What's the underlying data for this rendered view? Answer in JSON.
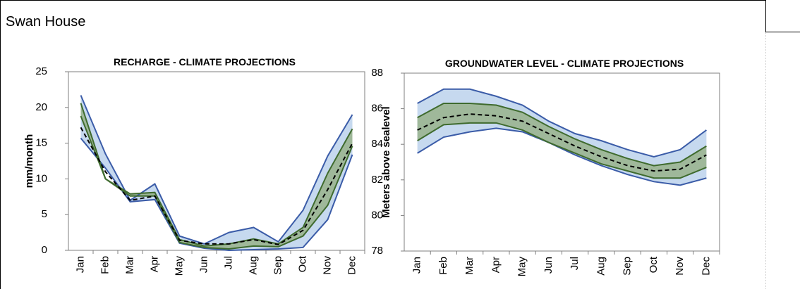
{
  "header": {
    "title": "Swan House"
  },
  "chart_data": [
    {
      "type": "line",
      "title": "RECHARGE - CLIMATE PROJECTIONS",
      "y_label": "mm/month",
      "categories": [
        "Jan",
        "Feb",
        "Mar",
        "Apr",
        "May",
        "Jun",
        "Jul",
        "Aug",
        "Sep",
        "Oct",
        "Nov",
        "Dec"
      ],
      "ylim": [
        0,
        25
      ],
      "yticks": [
        0,
        5,
        10,
        15,
        20,
        25
      ],
      "band_colors": [
        "#c6d9ef",
        "#9fb89a"
      ],
      "series": [
        {
          "color": "#3b5ca8",
          "values": [
            21.7,
            13.5,
            7.0,
            9.3,
            2.0,
            0.9,
            2.5,
            3.2,
            1.2,
            5.6,
            13.2,
            19.0
          ]
        },
        {
          "color": "#3b5ca8",
          "values": [
            15.7,
            11.5,
            6.8,
            7.1,
            1.0,
            0.3,
            0.0,
            0.1,
            0.2,
            0.4,
            4.3,
            13.4
          ]
        },
        {
          "color": "#3f6b2e",
          "values": [
            20.6,
            10.0,
            7.9,
            8.1,
            1.5,
            0.6,
            0.9,
            1.6,
            0.9,
            3.2,
            10.8,
            17.0
          ]
        },
        {
          "color": "#3f6b2e",
          "values": [
            18.8,
            10.0,
            7.6,
            7.6,
            1.1,
            0.4,
            0.2,
            0.6,
            0.5,
            2.0,
            6.3,
            14.6
          ]
        },
        {
          "color": "#000000",
          "dashed": true,
          "values": [
            17.2,
            11.0,
            7.0,
            7.6,
            1.4,
            0.9,
            0.9,
            1.5,
            0.8,
            2.8,
            8.5,
            15.0
          ]
        }
      ]
    },
    {
      "type": "line",
      "title": "GROUNDWATER LEVEL - CLIMATE PROJECTIONS",
      "y_label": "Meters above sealevel",
      "categories": [
        "Jan",
        "Feb",
        "Mar",
        "Apr",
        "May",
        "Jun",
        "Jul",
        "Aug",
        "Sep",
        "Oct",
        "Nov",
        "Dec"
      ],
      "ylim": [
        78,
        88
      ],
      "yticks": [
        78,
        80,
        82,
        84,
        86,
        88
      ],
      "band_colors": [
        "#c6d9ef",
        "#9fb89a"
      ],
      "series": [
        {
          "color": "#3b5ca8",
          "values": [
            86.3,
            87.1,
            87.1,
            86.7,
            86.2,
            85.3,
            84.6,
            84.2,
            83.7,
            83.3,
            83.7,
            84.8
          ]
        },
        {
          "color": "#3b5ca8",
          "values": [
            83.5,
            84.4,
            84.7,
            84.9,
            84.7,
            84.1,
            83.4,
            82.8,
            82.3,
            81.9,
            81.7,
            82.1
          ]
        },
        {
          "color": "#3f6b2e",
          "values": [
            85.5,
            86.3,
            86.3,
            86.2,
            85.8,
            85.0,
            84.3,
            83.7,
            83.2,
            82.8,
            83.0,
            83.9
          ]
        },
        {
          "color": "#3f6b2e",
          "values": [
            84.2,
            85.1,
            85.2,
            85.2,
            84.8,
            84.1,
            83.5,
            82.9,
            82.5,
            82.1,
            82.1,
            82.7
          ]
        },
        {
          "color": "#000000",
          "dashed": true,
          "values": [
            84.8,
            85.5,
            85.7,
            85.6,
            85.3,
            84.6,
            83.9,
            83.3,
            82.8,
            82.5,
            82.6,
            83.4
          ]
        }
      ]
    }
  ]
}
